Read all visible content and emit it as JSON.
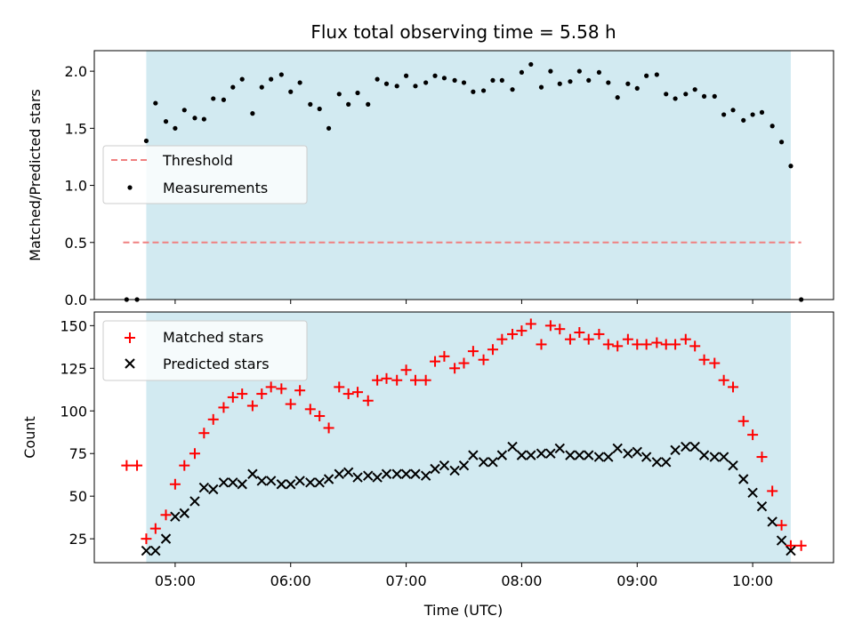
{
  "chart_data": [
    {
      "type": "scatter",
      "panel": "top",
      "title": "Flux total observing time = 5.58 h",
      "xlabel": "",
      "ylabel": "Matched/Predicted stars",
      "ylim": [
        0,
        2.18
      ],
      "yticks": [
        0.0,
        0.5,
        1.0,
        1.5,
        2.0
      ],
      "ytick_labels": [
        "0.0",
        "0.5",
        "1.0",
        "1.5",
        "2.0"
      ],
      "observing_window": {
        "start": 4.75,
        "end": 10.33,
        "color": "#add8e6"
      },
      "threshold": {
        "name": "Threshold",
        "value": 0.5,
        "x_range": [
          4.55,
          10.42
        ],
        "color": "#f08080"
      },
      "legend": {
        "placement": "center-left",
        "entries": [
          "Threshold",
          "Measurements"
        ]
      },
      "series": [
        {
          "name": "Measurements",
          "color": "#000000",
          "marker": "dot",
          "x": [
            4.58,
            4.67,
            4.75,
            4.83,
            4.92,
            5.0,
            5.08,
            5.17,
            5.25,
            5.33,
            5.42,
            5.5,
            5.58,
            5.67,
            5.75,
            5.83,
            5.92,
            6.0,
            6.08,
            6.17,
            6.25,
            6.33,
            6.42,
            6.5,
            6.58,
            6.67,
            6.75,
            6.83,
            6.92,
            7.0,
            7.08,
            7.17,
            7.25,
            7.33,
            7.42,
            7.5,
            7.58,
            7.67,
            7.75,
            7.83,
            7.92,
            8.0,
            8.08,
            8.17,
            8.25,
            8.33,
            8.42,
            8.5,
            8.58,
            8.67,
            8.75,
            8.83,
            8.92,
            9.0,
            9.08,
            9.17,
            9.25,
            9.33,
            9.42,
            9.5,
            9.58,
            9.67,
            9.75,
            9.83,
            9.92,
            10.0,
            10.08,
            10.17,
            10.25,
            10.33,
            10.42
          ],
          "y": [
            0.0,
            0.0,
            1.39,
            1.72,
            1.56,
            1.5,
            1.66,
            1.59,
            1.58,
            1.76,
            1.75,
            1.86,
            1.93,
            1.63,
            1.86,
            1.93,
            1.97,
            1.82,
            1.9,
            1.71,
            1.67,
            1.5,
            1.8,
            1.71,
            1.81,
            1.71,
            1.93,
            1.89,
            1.87,
            1.96,
            1.87,
            1.9,
            1.96,
            1.94,
            1.92,
            1.9,
            1.82,
            1.83,
            1.92,
            1.92,
            1.84,
            1.99,
            2.06,
            1.86,
            2.0,
            1.89,
            1.91,
            2.0,
            1.92,
            1.99,
            1.9,
            1.77,
            1.89,
            1.85,
            1.96,
            1.97,
            1.8,
            1.76,
            1.8,
            1.84,
            1.78,
            1.78,
            1.62,
            1.66,
            1.57,
            1.62,
            1.64,
            1.52,
            1.38,
            1.17,
            0.0
          ]
        }
      ]
    },
    {
      "type": "scatter",
      "panel": "bottom",
      "title": "",
      "xlabel": "Time (UTC)",
      "ylabel": "Count",
      "xlim": [
        4.3,
        10.7
      ],
      "ylim": [
        11,
        158
      ],
      "yticks": [
        25,
        50,
        75,
        100,
        125,
        150
      ],
      "ytick_labels": [
        "25",
        "50",
        "75",
        "100",
        "125",
        "150"
      ],
      "xticks": [
        5,
        6,
        7,
        8,
        9,
        10
      ],
      "xtick_labels": [
        "05:00",
        "06:00",
        "07:00",
        "08:00",
        "09:00",
        "10:00"
      ],
      "observing_window": {
        "start": 4.75,
        "end": 10.33,
        "color": "#add8e6"
      },
      "legend": {
        "placement": "top-left",
        "entries": [
          "Matched stars",
          "Predicted stars"
        ]
      },
      "series": [
        {
          "name": "Matched stars",
          "color": "#ff0000",
          "marker": "plus",
          "x": [
            4.58,
            4.67,
            4.75,
            4.83,
            4.92,
            5.0,
            5.08,
            5.17,
            5.25,
            5.33,
            5.42,
            5.5,
            5.58,
            5.67,
            5.75,
            5.83,
            5.92,
            6.0,
            6.08,
            6.17,
            6.25,
            6.33,
            6.42,
            6.5,
            6.58,
            6.67,
            6.75,
            6.83,
            6.92,
            7.0,
            7.08,
            7.17,
            7.25,
            7.33,
            7.42,
            7.5,
            7.58,
            7.67,
            7.75,
            7.83,
            7.92,
            8.0,
            8.08,
            8.17,
            8.25,
            8.33,
            8.42,
            8.5,
            8.58,
            8.67,
            8.75,
            8.83,
            8.92,
            9.0,
            9.08,
            9.17,
            9.25,
            9.33,
            9.42,
            9.5,
            9.58,
            9.67,
            9.75,
            9.83,
            9.92,
            10.0,
            10.08,
            10.17,
            10.25,
            10.33,
            10.42
          ],
          "y": [
            68,
            68,
            25,
            31,
            39,
            57,
            68,
            75,
            87,
            95,
            102,
            108,
            110,
            103,
            110,
            114,
            113,
            104,
            112,
            101,
            97,
            90,
            114,
            110,
            111,
            106,
            118,
            119,
            118,
            124,
            118,
            118,
            129,
            132,
            125,
            128,
            135,
            130,
            136,
            142,
            145,
            147,
            151,
            139,
            150,
            148,
            142,
            146,
            142,
            145,
            139,
            138,
            142,
            139,
            139,
            140,
            139,
            139,
            142,
            138,
            130,
            128,
            118,
            114,
            94,
            86,
            73,
            53,
            33,
            21,
            21
          ]
        },
        {
          "name": "Predicted stars",
          "color": "#000000",
          "marker": "x",
          "x": [
            4.75,
            4.83,
            4.92,
            5.0,
            5.08,
            5.17,
            5.25,
            5.33,
            5.42,
            5.5,
            5.58,
            5.67,
            5.75,
            5.83,
            5.92,
            6.0,
            6.08,
            6.17,
            6.25,
            6.33,
            6.42,
            6.5,
            6.58,
            6.67,
            6.75,
            6.83,
            6.92,
            7.0,
            7.08,
            7.17,
            7.25,
            7.33,
            7.42,
            7.5,
            7.58,
            7.67,
            7.75,
            7.83,
            7.92,
            8.0,
            8.08,
            8.17,
            8.25,
            8.33,
            8.42,
            8.5,
            8.58,
            8.67,
            8.75,
            8.83,
            8.92,
            9.0,
            9.08,
            9.17,
            9.25,
            9.33,
            9.42,
            9.5,
            9.58,
            9.67,
            9.75,
            9.83,
            9.92,
            10.0,
            10.08,
            10.17,
            10.25,
            10.33
          ],
          "y": [
            18,
            18,
            25,
            38,
            40,
            47,
            55,
            54,
            58,
            58,
            57,
            63,
            59,
            59,
            57,
            57,
            59,
            58,
            58,
            60,
            63,
            64,
            61,
            62,
            61,
            63,
            63,
            63,
            63,
            62,
            66,
            68,
            65,
            68,
            74,
            70,
            70,
            74,
            79,
            74,
            74,
            75,
            75,
            78,
            74,
            74,
            74,
            73,
            73,
            78,
            75,
            76,
            73,
            70,
            70,
            77,
            79,
            79,
            74,
            73,
            73,
            68,
            60,
            52,
            44,
            35,
            24,
            18
          ]
        }
      ]
    }
  ]
}
